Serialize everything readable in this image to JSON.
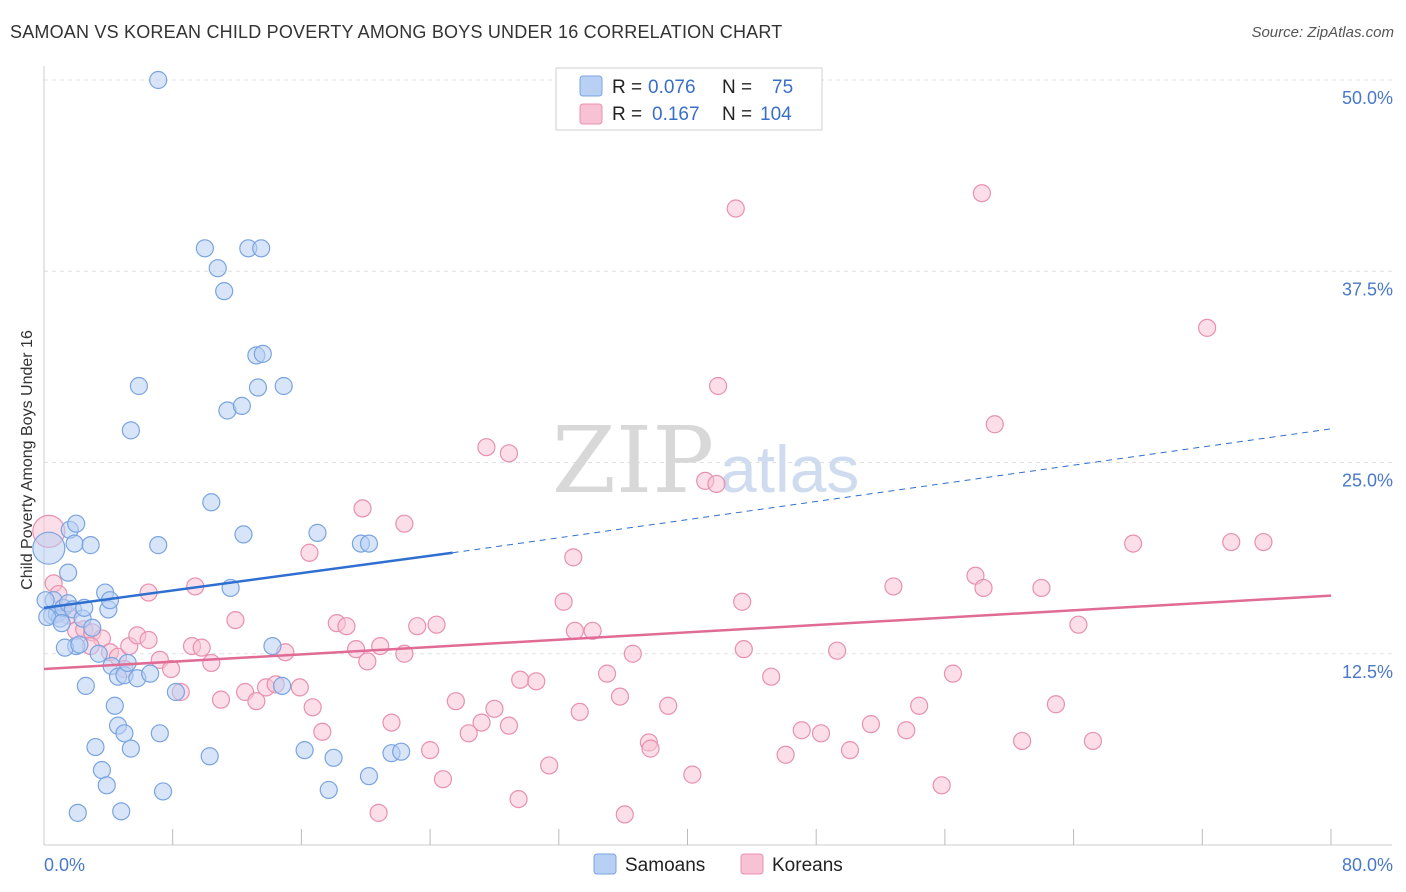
{
  "title": "SAMOAN VS KOREAN CHILD POVERTY AMONG BOYS UNDER 16 CORRELATION CHART",
  "source": "Source: ZipAtlas.com",
  "watermark": {
    "zip": "ZIP",
    "atlas": "atlas"
  },
  "colors": {
    "samoans_fill": "#b8d0f4",
    "samoans_stroke": "#7aa4e0",
    "samoans_line": "#2f6fd0",
    "koreans_fill": "#f7c2d4",
    "koreans_stroke": "#e890b0",
    "koreans_line": "#e06b94",
    "tick": "#4a78c8",
    "grid": "#e0e0e0"
  },
  "legend": {
    "r_label": "R =",
    "n_label": "N =",
    "samoans": {
      "r": "0.076",
      "n": "75"
    },
    "koreans": {
      "r": "0.167",
      "n": "104"
    }
  },
  "chart_data": {
    "type": "scatter",
    "title": "SAMOAN VS KOREAN CHILD POVERTY AMONG BOYS UNDER 16 CORRELATION CHART",
    "xlabel": "",
    "ylabel": "Child Poverty Among Boys Under 16",
    "xlim": [
      0,
      80
    ],
    "ylim": [
      0,
      50
    ],
    "x_tick_labels": [
      "0.0%",
      "80.0%"
    ],
    "y_ticks": [
      12.5,
      25.0,
      37.5,
      50.0
    ],
    "y_tick_labels": [
      "12.5%",
      "25.0%",
      "37.5%",
      "50.0%"
    ],
    "grid": true,
    "legend_placement": "top-center",
    "series": [
      {
        "name": "Samoans",
        "trend": {
          "x": [
            0,
            25.4
          ],
          "y": [
            15.5,
            19.1
          ],
          "dashed_to": [
            80,
            27.2
          ]
        },
        "points": [
          [
            0.3,
            19.4
          ],
          [
            0.5,
            15.0
          ],
          [
            0.6,
            16.0
          ],
          [
            0.8,
            15.1
          ],
          [
            1.0,
            14.8
          ],
          [
            1.2,
            15.5
          ],
          [
            1.5,
            15.8
          ],
          [
            1.8,
            15.4
          ],
          [
            2.0,
            13.0
          ],
          [
            1.3,
            12.9
          ],
          [
            2.2,
            13.1
          ],
          [
            2.6,
            10.4
          ],
          [
            2.4,
            14.8
          ],
          [
            3.0,
            14.2
          ],
          [
            3.4,
            12.5
          ],
          [
            3.8,
            16.5
          ],
          [
            4.0,
            15.4
          ],
          [
            4.2,
            11.7
          ],
          [
            4.6,
            11.0
          ],
          [
            5.0,
            11.1
          ],
          [
            5.2,
            11.9
          ],
          [
            3.2,
            6.4
          ],
          [
            3.6,
            4.9
          ],
          [
            3.9,
            3.9
          ],
          [
            4.4,
            9.1
          ],
          [
            4.6,
            7.8
          ],
          [
            4.8,
            2.2
          ],
          [
            5.0,
            7.3
          ],
          [
            5.4,
            6.3
          ],
          [
            5.8,
            10.9
          ],
          [
            6.6,
            11.2
          ],
          [
            7.2,
            7.3
          ],
          [
            7.4,
            3.5
          ],
          [
            1.6,
            20.6
          ],
          [
            1.9,
            19.7
          ],
          [
            2.9,
            19.6
          ],
          [
            5.9,
            30.0
          ],
          [
            5.4,
            27.1
          ],
          [
            7.1,
            19.6
          ],
          [
            8.2,
            10.0
          ],
          [
            10.3,
            5.8
          ],
          [
            10.0,
            39.0
          ],
          [
            10.8,
            37.7
          ],
          [
            11.2,
            36.2
          ],
          [
            11.4,
            28.4
          ],
          [
            12.7,
            39.0
          ],
          [
            13.2,
            32.0
          ],
          [
            12.3,
            28.7
          ],
          [
            11.6,
            16.8
          ],
          [
            10.4,
            22.4
          ],
          [
            13.5,
            39.0
          ],
          [
            13.6,
            32.1
          ],
          [
            12.4,
            20.3
          ],
          [
            14.9,
            30.0
          ],
          [
            13.3,
            29.9
          ],
          [
            14.2,
            13.0
          ],
          [
            14.8,
            10.4
          ],
          [
            17.0,
            20.4
          ],
          [
            16.2,
            6.2
          ],
          [
            18.0,
            5.7
          ],
          [
            17.7,
            3.6
          ],
          [
            19.7,
            19.7
          ],
          [
            20.2,
            19.7
          ],
          [
            20.2,
            4.5
          ],
          [
            21.6,
            6.0
          ],
          [
            22.2,
            6.1
          ],
          [
            2.0,
            21.0
          ],
          [
            0.2,
            14.9
          ],
          [
            0.1,
            16.0
          ],
          [
            1.5,
            17.8
          ],
          [
            4.1,
            16.0
          ],
          [
            2.5,
            15.5
          ],
          [
            7.1,
            50.0
          ],
          [
            2.1,
            2.1
          ],
          [
            1.1,
            14.5
          ]
        ]
      },
      {
        "name": "Koreans",
        "trend": {
          "x": [
            0,
            80
          ],
          "y": [
            11.5,
            16.3
          ]
        },
        "points": [
          [
            0.3,
            20.5
          ],
          [
            0.6,
            17.1
          ],
          [
            0.9,
            16.4
          ],
          [
            1.2,
            15.5
          ],
          [
            1.5,
            15.0
          ],
          [
            2.0,
            14.0
          ],
          [
            2.5,
            14.1
          ],
          [
            3.0,
            13.9
          ],
          [
            3.6,
            13.5
          ],
          [
            4.1,
            12.6
          ],
          [
            4.6,
            12.3
          ],
          [
            5.0,
            11.5
          ],
          [
            5.3,
            13.0
          ],
          [
            5.8,
            13.7
          ],
          [
            6.5,
            13.4
          ],
          [
            7.2,
            12.1
          ],
          [
            7.9,
            11.5
          ],
          [
            8.5,
            10.0
          ],
          [
            9.2,
            13.0
          ],
          [
            9.8,
            12.9
          ],
          [
            10.4,
            11.9
          ],
          [
            11.0,
            9.5
          ],
          [
            11.9,
            14.7
          ],
          [
            12.5,
            10.0
          ],
          [
            13.2,
            9.4
          ],
          [
            13.8,
            10.3
          ],
          [
            14.4,
            10.5
          ],
          [
            15.0,
            12.6
          ],
          [
            15.9,
            10.3
          ],
          [
            16.7,
            9.0
          ],
          [
            17.3,
            7.4
          ],
          [
            18.2,
            14.5
          ],
          [
            18.8,
            14.3
          ],
          [
            19.4,
            12.8
          ],
          [
            20.1,
            12.0
          ],
          [
            20.9,
            13.0
          ],
          [
            21.6,
            8.0
          ],
          [
            22.4,
            12.5
          ],
          [
            23.2,
            14.3
          ],
          [
            24.0,
            6.2
          ],
          [
            24.8,
            4.3
          ],
          [
            25.6,
            9.4
          ],
          [
            26.4,
            7.3
          ],
          [
            27.2,
            8.0
          ],
          [
            28.0,
            8.9
          ],
          [
            28.9,
            7.8
          ],
          [
            29.6,
            10.8
          ],
          [
            30.6,
            10.7
          ],
          [
            31.4,
            5.2
          ],
          [
            32.3,
            15.9
          ],
          [
            33.3,
            8.7
          ],
          [
            34.1,
            14.0
          ],
          [
            35.0,
            11.2
          ],
          [
            35.8,
            9.7
          ],
          [
            36.6,
            12.5
          ],
          [
            37.6,
            6.7
          ],
          [
            38.8,
            9.1
          ],
          [
            40.3,
            4.6
          ],
          [
            41.1,
            23.8
          ],
          [
            41.8,
            23.6
          ],
          [
            43.4,
            15.9
          ],
          [
            45.2,
            11.0
          ],
          [
            46.1,
            5.9
          ],
          [
            47.1,
            7.5
          ],
          [
            48.3,
            7.3
          ],
          [
            49.3,
            12.7
          ],
          [
            50.1,
            6.2
          ],
          [
            51.4,
            7.9
          ],
          [
            52.8,
            16.9
          ],
          [
            53.6,
            7.5
          ],
          [
            54.4,
            9.1
          ],
          [
            55.8,
            3.9
          ],
          [
            56.5,
            11.2
          ],
          [
            57.9,
            17.6
          ],
          [
            58.4,
            16.8
          ],
          [
            59.1,
            27.5
          ],
          [
            60.8,
            6.8
          ],
          [
            62.0,
            16.8
          ],
          [
            62.9,
            9.2
          ],
          [
            64.3,
            14.4
          ],
          [
            65.2,
            6.8
          ],
          [
            67.7,
            19.7
          ],
          [
            72.3,
            33.8
          ],
          [
            73.8,
            19.8
          ],
          [
            75.8,
            19.8
          ],
          [
            43.0,
            41.6
          ],
          [
            58.3,
            42.6
          ],
          [
            41.9,
            30.0
          ],
          [
            24.4,
            14.4
          ],
          [
            28.9,
            25.6
          ],
          [
            19.8,
            22.0
          ],
          [
            22.4,
            21.0
          ],
          [
            27.5,
            26.0
          ],
          [
            32.9,
            18.8
          ],
          [
            37.7,
            6.3
          ],
          [
            33.0,
            14.0
          ],
          [
            16.5,
            19.1
          ],
          [
            6.5,
            16.5
          ],
          [
            29.5,
            3.0
          ],
          [
            36.1,
            2.0
          ],
          [
            20.8,
            2.1
          ],
          [
            43.5,
            12.8
          ],
          [
            2.9,
            13.0
          ],
          [
            9.4,
            16.9
          ]
        ]
      }
    ]
  },
  "bottom_legend": {
    "samoans": "Samoans",
    "koreans": "Koreans"
  }
}
